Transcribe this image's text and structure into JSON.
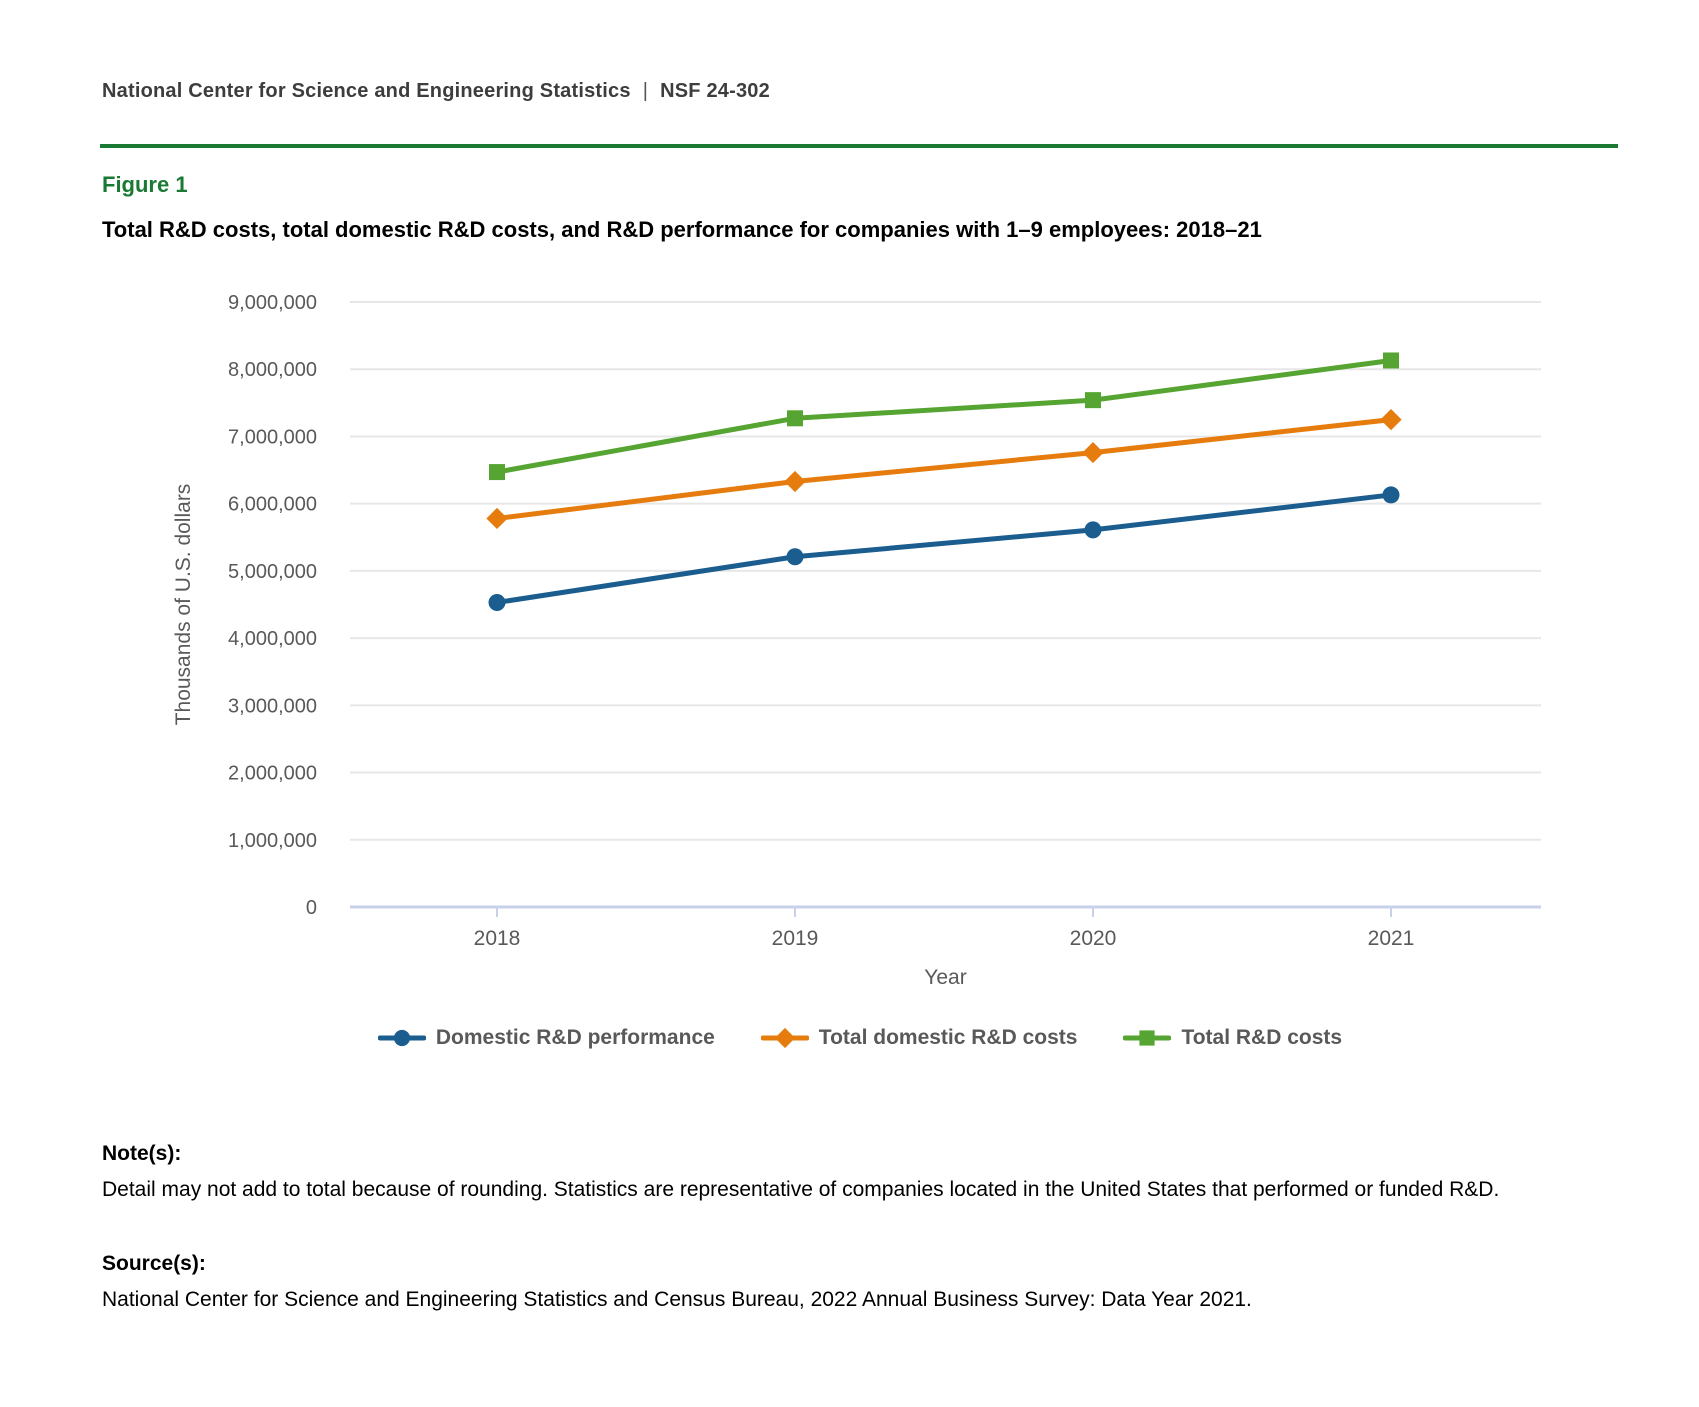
{
  "header": {
    "agency": "National Center for Science and Engineering Statistics",
    "separator": "|",
    "report_number": "NSF 24-302"
  },
  "figure": {
    "label": "Figure 1",
    "title": "Total R&D costs, total domestic R&D costs, and R&D performance for companies with 1–9 employees: 2018–21"
  },
  "chart_data": {
    "type": "line",
    "categories": [
      "2018",
      "2019",
      "2020",
      "2021"
    ],
    "series": [
      {
        "name": "Domestic R&D performance",
        "marker": "circle",
        "color": "#1b5d8f",
        "values": [
          4530000,
          5210000,
          5610000,
          6130000
        ]
      },
      {
        "name": "Total domestic R&D costs",
        "marker": "diamond",
        "color": "#e67c0e",
        "values": [
          5780000,
          6330000,
          6760000,
          7250000
        ]
      },
      {
        "name": "Total R&D costs",
        "marker": "square",
        "color": "#56a532",
        "values": [
          6470000,
          7270000,
          7540000,
          8130000
        ]
      }
    ],
    "xlabel": "Year",
    "ylabel": "Thousands of U.S. dollars",
    "ylim": [
      0,
      9000000
    ],
    "ytick_interval": 1000000,
    "grid": "horizontal",
    "legend_position": "bottom"
  },
  "notes": {
    "label": "Note(s):",
    "text": "Detail may not add to total because of rounding. Statistics are representative of companies located in the United States that performed or funded R&D."
  },
  "sources": {
    "label": "Source(s):",
    "text": "National Center for Science and Engineering Statistics and Census Bureau, 2022 Annual Business Survey: Data Year 2021."
  },
  "colors": {
    "accent_green": "#1a7a33",
    "axis_text": "#595959",
    "gridline": "#e7e7e7",
    "axis_line": "#c7d2e8",
    "legend_text": "#595959"
  }
}
